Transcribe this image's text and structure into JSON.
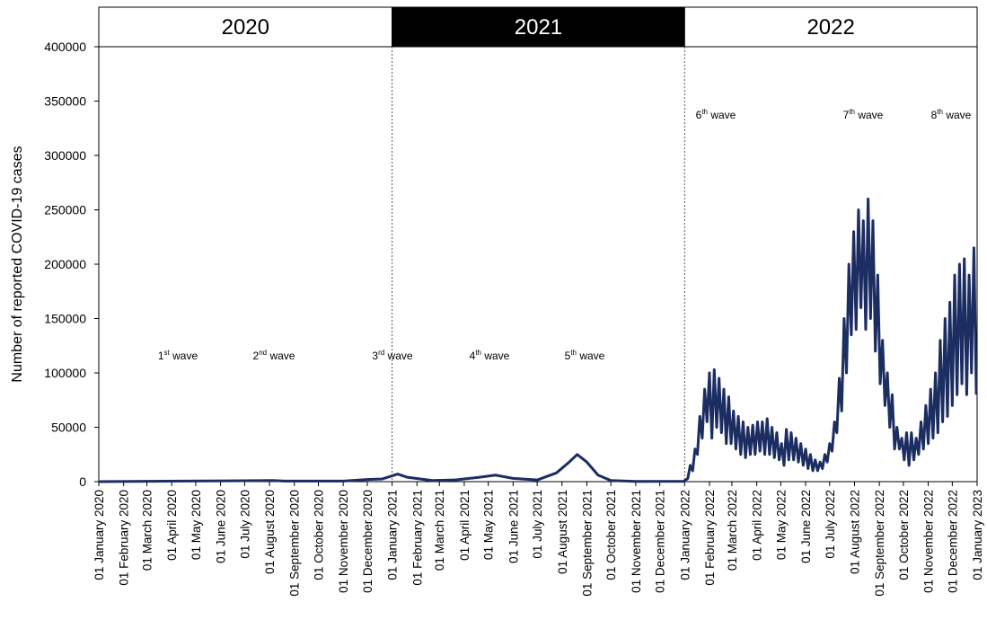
{
  "chart_data": {
    "type": "line",
    "y_label": "Number of reported COVID-19 cases",
    "periods": [
      "2020",
      "2021",
      "2022"
    ],
    "period_fills": [
      "#ffffff",
      "#000000",
      "#ffffff"
    ],
    "annotations": [
      {
        "number": "1",
        "suffix": "st",
        "text": " wave"
      },
      {
        "number": "2",
        "suffix": "nd",
        "text": " wave"
      },
      {
        "number": "3",
        "suffix": "rd",
        "text": " wave"
      },
      {
        "number": "4",
        "suffix": "th",
        "text": " wave"
      },
      {
        "number": "5",
        "suffix": "th",
        "text": " wave"
      },
      {
        "number": "6",
        "suffix": "th",
        "text": " wave"
      },
      {
        "number": "7",
        "suffix": "th",
        "text": " wave"
      },
      {
        "number": "8",
        "suffix": "th",
        "text": " wave"
      }
    ],
    "xlim": [
      "2020-01-01",
      "2023-01-01"
    ],
    "ylim": [
      0,
      400000
    ],
    "yticks": [
      0,
      50000,
      100000,
      150000,
      200000,
      250000,
      300000,
      350000,
      400000
    ],
    "xticks": [
      {
        "value": "2020-01-01",
        "label": "01 January 2020"
      },
      {
        "value": "2020-02-01",
        "label": "01 February 2020"
      },
      {
        "value": "2020-03-01",
        "label": "01 March 2020"
      },
      {
        "value": "2020-04-01",
        "label": "01 April 2020"
      },
      {
        "value": "2020-05-01",
        "label": "01 May 2020"
      },
      {
        "value": "2020-06-01",
        "label": "01 June 2020"
      },
      {
        "value": "2020-07-01",
        "label": "01 July 2020"
      },
      {
        "value": "2020-08-01",
        "label": "01 August 2020"
      },
      {
        "value": "2020-09-01",
        "label": "01 September 2020"
      },
      {
        "value": "2020-10-01",
        "label": "01 October 2020"
      },
      {
        "value": "2020-11-01",
        "label": "01 November 2020"
      },
      {
        "value": "2020-12-01",
        "label": "01 December 2020"
      },
      {
        "value": "2021-01-01",
        "label": "01 January 2021"
      },
      {
        "value": "2021-02-01",
        "label": "01 February 2021"
      },
      {
        "value": "2021-03-01",
        "label": "01 March 2021"
      },
      {
        "value": "2021-04-01",
        "label": "01 April 2021"
      },
      {
        "value": "2021-05-01",
        "label": "01 May 2021"
      },
      {
        "value": "2021-06-01",
        "label": "01 June 2021"
      },
      {
        "value": "2021-07-01",
        "label": "01 July 2021"
      },
      {
        "value": "2021-08-01",
        "label": "01 August 2021"
      },
      {
        "value": "2021-09-01",
        "label": "01 September 2021"
      },
      {
        "value": "2021-10-01",
        "label": "01 October 2021"
      },
      {
        "value": "2021-11-01",
        "label": "01 November 2021"
      },
      {
        "value": "2021-12-01",
        "label": "01 December 2021"
      },
      {
        "value": "2022-01-01",
        "label": "01 January 2022"
      },
      {
        "value": "2022-02-01",
        "label": "01 February 2022"
      },
      {
        "value": "2022-03-01",
        "label": "01 March 2022"
      },
      {
        "value": "2022-04-01",
        "label": "01 April 2022"
      },
      {
        "value": "2022-05-01",
        "label": "01 May 2022"
      },
      {
        "value": "2022-06-01",
        "label": "01 June 2022"
      },
      {
        "value": "2022-07-01",
        "label": "01 July 2022"
      },
      {
        "value": "2022-08-01",
        "label": "01 August 2022"
      },
      {
        "value": "2022-09-01",
        "label": "01 September 2022"
      },
      {
        "value": "2022-10-01",
        "label": "01 October 2022"
      },
      {
        "value": "2022-11-01",
        "label": "01 November 2022"
      },
      {
        "value": "2022-12-01",
        "label": "01 December 2022"
      },
      {
        "value": "2023-01-01",
        "label": "01 January 2023"
      }
    ],
    "series": [
      {
        "color": "#1c2d62",
        "x": [
          "2020-01-01",
          "2020-04-15",
          "2020-08-05",
          "2020-08-20",
          "2020-11-01",
          "2020-12-01",
          "2020-12-20",
          "2021-01-08",
          "2021-01-20",
          "2021-02-20",
          "2021-03-20",
          "2021-04-20",
          "2021-05-10",
          "2021-06-01",
          "2021-07-01",
          "2021-07-25",
          "2021-08-10",
          "2021-08-20",
          "2021-09-01",
          "2021-09-15",
          "2021-10-01",
          "2021-11-01",
          "2021-12-31",
          "2022-01-05",
          "2022-01-08",
          "2022-01-11",
          "2022-01-14",
          "2022-01-17",
          "2022-01-20",
          "2022-01-23",
          "2022-01-26",
          "2022-01-29",
          "2022-02-01",
          "2022-02-04",
          "2022-02-07",
          "2022-02-10",
          "2022-02-13",
          "2022-02-16",
          "2022-02-19",
          "2022-02-22",
          "2022-02-25",
          "2022-02-28",
          "2022-03-03",
          "2022-03-06",
          "2022-03-09",
          "2022-03-12",
          "2022-03-15",
          "2022-03-18",
          "2022-03-21",
          "2022-03-24",
          "2022-03-27",
          "2022-03-30",
          "2022-04-02",
          "2022-04-05",
          "2022-04-08",
          "2022-04-11",
          "2022-04-14",
          "2022-04-17",
          "2022-04-20",
          "2022-04-23",
          "2022-04-26",
          "2022-04-29",
          "2022-05-02",
          "2022-05-05",
          "2022-05-08",
          "2022-05-11",
          "2022-05-14",
          "2022-05-17",
          "2022-05-20",
          "2022-05-23",
          "2022-05-26",
          "2022-05-29",
          "2022-06-01",
          "2022-06-04",
          "2022-06-07",
          "2022-06-10",
          "2022-06-13",
          "2022-06-16",
          "2022-06-19",
          "2022-06-22",
          "2022-06-25",
          "2022-06-28",
          "2022-07-01",
          "2022-07-04",
          "2022-07-07",
          "2022-07-10",
          "2022-07-13",
          "2022-07-16",
          "2022-07-19",
          "2022-07-22",
          "2022-07-25",
          "2022-07-28",
          "2022-07-31",
          "2022-08-03",
          "2022-08-06",
          "2022-08-09",
          "2022-08-12",
          "2022-08-15",
          "2022-08-18",
          "2022-08-21",
          "2022-08-24",
          "2022-08-27",
          "2022-08-30",
          "2022-09-02",
          "2022-09-05",
          "2022-09-08",
          "2022-09-11",
          "2022-09-14",
          "2022-09-17",
          "2022-09-20",
          "2022-09-23",
          "2022-09-26",
          "2022-09-29",
          "2022-10-02",
          "2022-10-05",
          "2022-10-08",
          "2022-10-11",
          "2022-10-14",
          "2022-10-17",
          "2022-10-20",
          "2022-10-23",
          "2022-10-26",
          "2022-10-29",
          "2022-11-01",
          "2022-11-04",
          "2022-11-07",
          "2022-11-10",
          "2022-11-13",
          "2022-11-16",
          "2022-11-19",
          "2022-11-22",
          "2022-11-25",
          "2022-11-28",
          "2022-12-01",
          "2022-12-04",
          "2022-12-07",
          "2022-12-10",
          "2022-12-13",
          "2022-12-16",
          "2022-12-19",
          "2022-12-22",
          "2022-12-25",
          "2022-12-28",
          "2022-12-31"
        ],
        "values": [
          0,
          500,
          1000,
          500,
          500,
          2000,
          2500,
          7000,
          4000,
          1000,
          1500,
          4000,
          6000,
          3000,
          1500,
          8000,
          18000,
          25000,
          18000,
          6000,
          1000,
          200,
          300,
          3000,
          15000,
          10000,
          30000,
          25000,
          60000,
          40000,
          85000,
          55000,
          100000,
          40000,
          103000,
          50000,
          95000,
          45000,
          85000,
          35000,
          78000,
          35000,
          65000,
          30000,
          60000,
          25000,
          55000,
          22000,
          50000,
          25000,
          52000,
          25000,
          55000,
          28000,
          55000,
          25000,
          58000,
          25000,
          50000,
          22000,
          45000,
          20000,
          35000,
          15000,
          48000,
          20000,
          45000,
          20000,
          40000,
          18000,
          35000,
          15000,
          30000,
          12000,
          25000,
          10000,
          20000,
          10000,
          18000,
          12000,
          25000,
          18000,
          35000,
          28000,
          55000,
          45000,
          95000,
          65000,
          150000,
          100000,
          200000,
          135000,
          230000,
          140000,
          250000,
          160000,
          240000,
          140000,
          260000,
          150000,
          240000,
          120000,
          190000,
          90000,
          130000,
          70000,
          100000,
          50000,
          80000,
          30000,
          50000,
          30000,
          40000,
          20000,
          45000,
          15000,
          45000,
          20000,
          40000,
          25000,
          55000,
          30000,
          70000,
          35000,
          85000,
          40000,
          100000,
          45000,
          130000,
          55000,
          150000,
          60000,
          165000,
          70000,
          190000,
          80000,
          200000,
          90000,
          205000,
          80000,
          190000,
          100000,
          215000,
          80000
        ]
      }
    ]
  }
}
